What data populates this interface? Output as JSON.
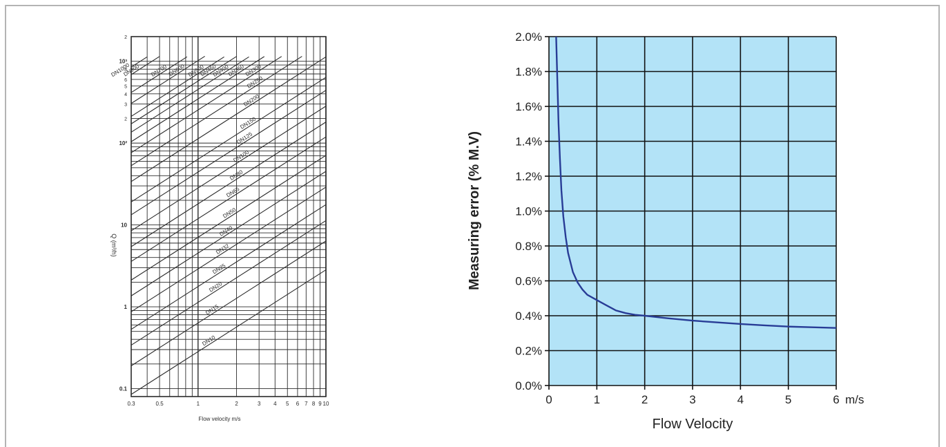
{
  "colors": {
    "plot_bg": "#b3e3f7",
    "curve": "#283c96",
    "grid": "#111111",
    "nomogram_ink": "#2a2a2a",
    "frame": "#b4b4b4"
  },
  "chart_data": [
    {
      "type": "line",
      "scale": "log-log",
      "xlabel": "Flow velocity m/s",
      "ylabel": "Q (m³/h)",
      "xlim": [
        0.3,
        10
      ],
      "ylim": [
        0.08,
        2000
      ],
      "x_ticks": [
        "0.3",
        "0.5",
        "1",
        "2",
        "3",
        "4",
        "5",
        "6",
        "7",
        "8",
        "9",
        "10"
      ],
      "y_decade_labels": [
        "10³",
        "10²",
        "10",
        "1",
        "0.1"
      ],
      "y_minor_labels": [
        "2",
        "8",
        "6",
        "5",
        "4",
        "3",
        "2"
      ],
      "series": [
        {
          "name": "DN10",
          "values": [
            [
              0.3,
              0.085
            ],
            [
              10,
              2.83
            ]
          ]
        },
        {
          "name": "DN15",
          "values": [
            [
              0.3,
              0.19
            ],
            [
              10,
              6.36
            ]
          ]
        },
        {
          "name": "DN20",
          "values": [
            [
              0.3,
              0.34
            ],
            [
              10,
              11.3
            ]
          ]
        },
        {
          "name": "DN25",
          "values": [
            [
              0.3,
              0.53
            ],
            [
              10,
              17.7
            ]
          ]
        },
        {
          "name": "DN32",
          "values": [
            [
              0.3,
              0.87
            ],
            [
              10,
              29.0
            ]
          ]
        },
        {
          "name": "DN40",
          "values": [
            [
              0.3,
              1.36
            ],
            [
              10,
              45.2
            ]
          ]
        },
        {
          "name": "DN50",
          "values": [
            [
              0.3,
              2.12
            ],
            [
              10,
              70.7
            ]
          ]
        },
        {
          "name": "DN65",
          "values": [
            [
              0.3,
              3.58
            ],
            [
              10,
              119
            ]
          ]
        },
        {
          "name": "DN80",
          "values": [
            [
              0.3,
              5.43
            ],
            [
              10,
              181
            ]
          ]
        },
        {
          "name": "DN100",
          "values": [
            [
              0.3,
              8.48
            ],
            [
              10,
              283
            ]
          ]
        },
        {
          "name": "DN125",
          "values": [
            [
              0.3,
              13.3
            ],
            [
              10,
              442
            ]
          ]
        },
        {
          "name": "DN150",
          "values": [
            [
              0.3,
              19.1
            ],
            [
              10,
              636
            ]
          ]
        },
        {
          "name": "DN200",
          "values": [
            [
              0.3,
              33.9
            ],
            [
              10,
              1131
            ]
          ]
        },
        {
          "name": "DN250",
          "values": [
            [
              0.3,
              53.0
            ],
            [
              6.5,
              1148
            ]
          ]
        },
        {
          "name": "DN300",
          "values": [
            [
              0.3,
              76.3
            ],
            [
              4.5,
              1145
            ]
          ]
        },
        {
          "name": "DN350",
          "values": [
            [
              0.3,
              104
            ],
            [
              3.3,
              1143
            ]
          ]
        },
        {
          "name": "DN400",
          "values": [
            [
              0.3,
              136
            ],
            [
              2.5,
              1131
            ]
          ]
        },
        {
          "name": "DN450",
          "values": [
            [
              0.3,
              172
            ],
            [
              2.0,
              1145
            ]
          ]
        },
        {
          "name": "DN500",
          "values": [
            [
              0.3,
              212
            ],
            [
              1.6,
              1131
            ]
          ]
        },
        {
          "name": "DN600",
          "values": [
            [
              0.3,
              305
            ],
            [
              1.13,
              1150
            ]
          ]
        },
        {
          "name": "DN700",
          "values": [
            [
              0.3,
              415
            ],
            [
              0.82,
              1134
            ]
          ]
        },
        {
          "name": "DN900",
          "values": [
            [
              0.3,
              687
            ],
            [
              0.5,
              1145
            ]
          ]
        },
        {
          "name": "DN1000",
          "values": [
            [
              0.3,
              848
            ],
            [
              0.4,
              1131
            ]
          ]
        }
      ]
    },
    {
      "type": "line",
      "xlabel": "Flow Velocity",
      "x_unit": "m/s",
      "ylabel": "Measuring error (% M.V)",
      "xlim": [
        0,
        6
      ],
      "ylim": [
        0,
        2.0
      ],
      "x_ticks": [
        "0",
        "1",
        "2",
        "3",
        "4",
        "5",
        "6"
      ],
      "y_ticks": [
        "0.0%",
        "0.2%",
        "0.4%",
        "0.6%",
        "0.8%",
        "1.0%",
        "1.2%",
        "1.4%",
        "1.6%",
        "1.8%",
        "2.0%"
      ],
      "grid": true,
      "series": [
        {
          "x": [
            0.15,
            0.18,
            0.2,
            0.23,
            0.26,
            0.3,
            0.35,
            0.4,
            0.5,
            0.6,
            0.7,
            0.8,
            1.0,
            1.2,
            1.4,
            1.6,
            1.8,
            2.0,
            2.5,
            3.0,
            3.5,
            4.0,
            4.5,
            5.0,
            5.5,
            6.0
          ],
          "y": [
            2.0,
            1.7,
            1.5,
            1.3,
            1.12,
            0.97,
            0.85,
            0.76,
            0.65,
            0.59,
            0.55,
            0.52,
            0.49,
            0.46,
            0.43,
            0.415,
            0.405,
            0.4,
            0.385,
            0.372,
            0.362,
            0.353,
            0.345,
            0.338,
            0.334,
            0.33
          ]
        }
      ]
    }
  ]
}
